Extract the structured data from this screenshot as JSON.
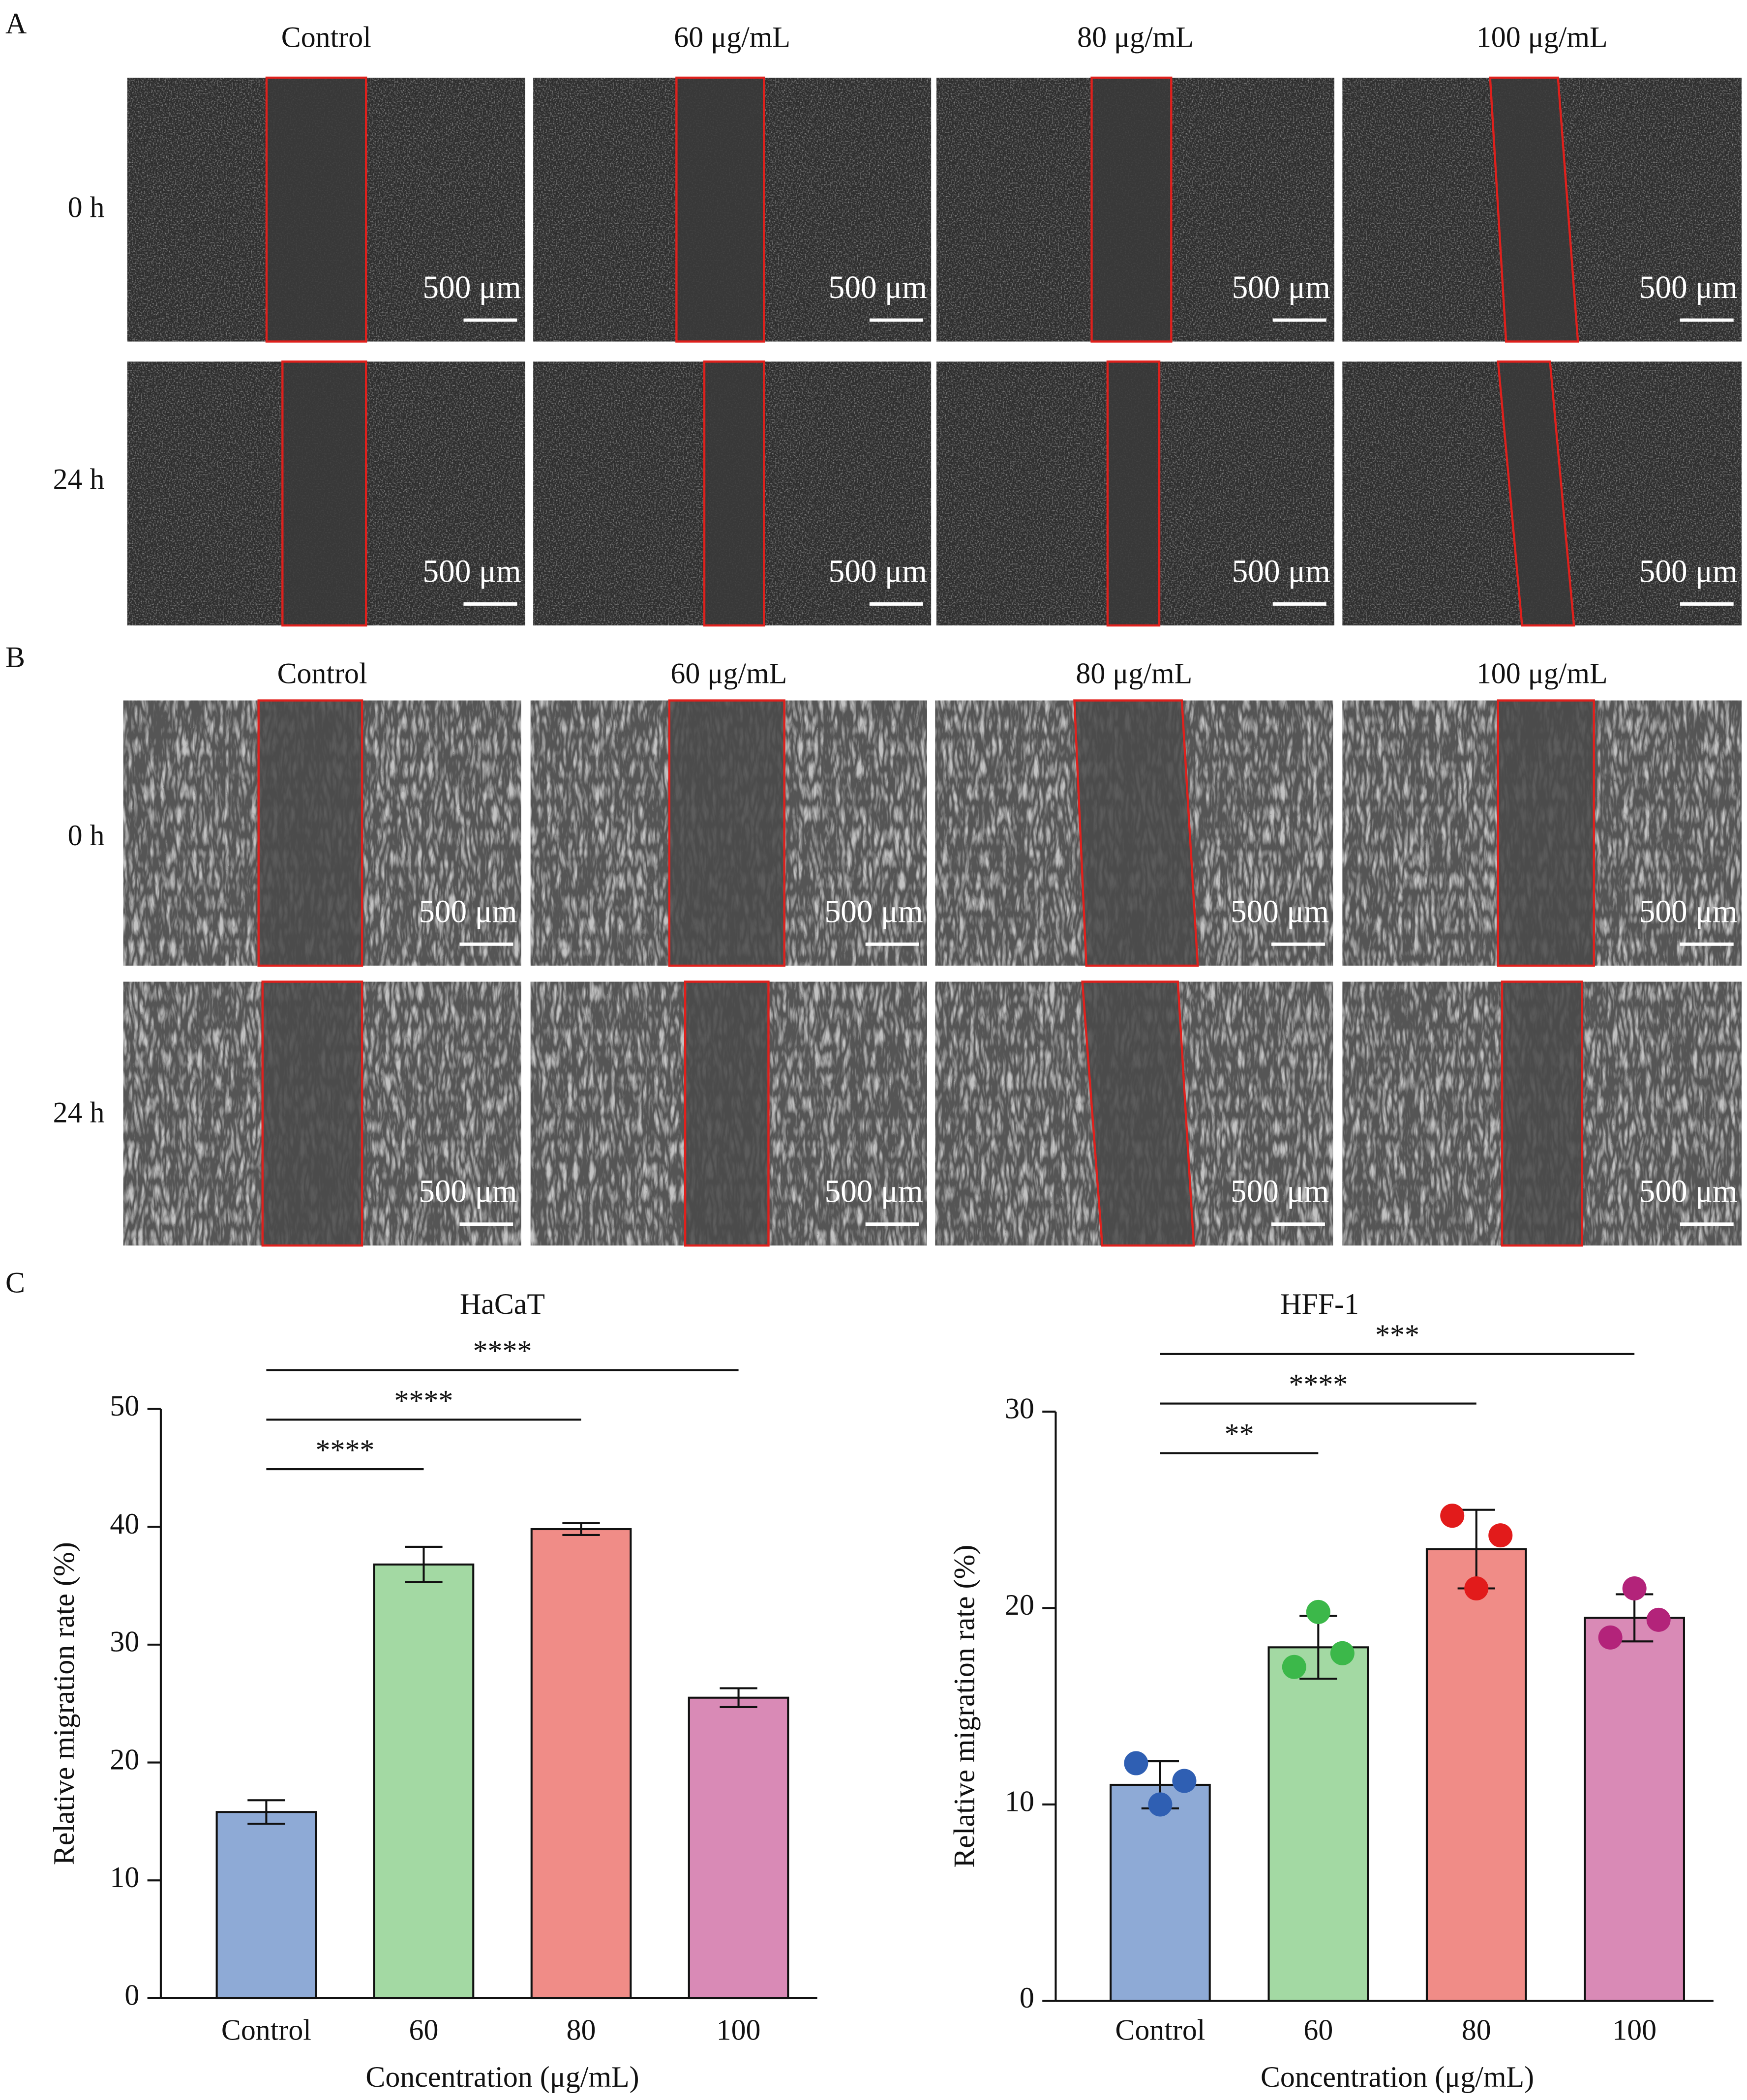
{
  "panels": [
    {
      "label": "A",
      "columns": [
        "Control",
        "60 μg/mL",
        "80 μg/mL",
        "100 μg/mL"
      ],
      "rows": [
        "0 h",
        "24 h"
      ],
      "scale_bar": "500 μm"
    },
    {
      "label": "B",
      "columns": [
        "Control",
        "60 μg/mL",
        "80 μg/mL",
        "100 μg/mL"
      ],
      "rows": [
        "0 h",
        "24 h"
      ],
      "scale_bar": "500 μm"
    }
  ],
  "chart_panel_label": "C",
  "chart_data": [
    {
      "type": "bar",
      "title": "HaCaT",
      "categories": [
        "Control",
        "60",
        "80",
        "100"
      ],
      "values": [
        15.8,
        36.8,
        39.8,
        25.5
      ],
      "errors": [
        1.0,
        1.5,
        0.5,
        0.8
      ],
      "colors": [
        "#8eaad6",
        "#a3d9a3",
        "#f08c87",
        "#d98ab6"
      ],
      "ylim": [
        0,
        50
      ],
      "yticks": [
        0,
        10,
        20,
        30,
        40,
        50
      ],
      "xlabel": "Concentration (μg/mL)",
      "ylabel": "Relative migration rate (%)",
      "significance": [
        "****",
        "****",
        "****"
      ]
    },
    {
      "type": "bar",
      "title": "HFF-1",
      "categories": [
        "Control",
        "60",
        "80",
        "100"
      ],
      "values": [
        11.0,
        18.0,
        23.0,
        19.5
      ],
      "errors": [
        1.2,
        1.6,
        2.0,
        1.2
      ],
      "colors": [
        "#8eaad6",
        "#a3d9a3",
        "#f08c87",
        "#d98ab6"
      ],
      "points": [
        [
          12.1,
          10.0,
          11.2
        ],
        [
          17.0,
          19.8,
          17.7
        ],
        [
          24.7,
          21.0,
          23.7
        ],
        [
          18.5,
          21.0,
          19.4
        ]
      ],
      "point_colors": [
        "#2f5fb3",
        "#3cb84a",
        "#e21b1b",
        "#b3237a"
      ],
      "ylim": [
        0,
        30
      ],
      "yticks": [
        0,
        10,
        20,
        30
      ],
      "xlabel": "Concentration (μg/mL)",
      "ylabel": "Relative migration rate (%)",
      "significance": [
        "**",
        "****",
        "***"
      ]
    }
  ]
}
